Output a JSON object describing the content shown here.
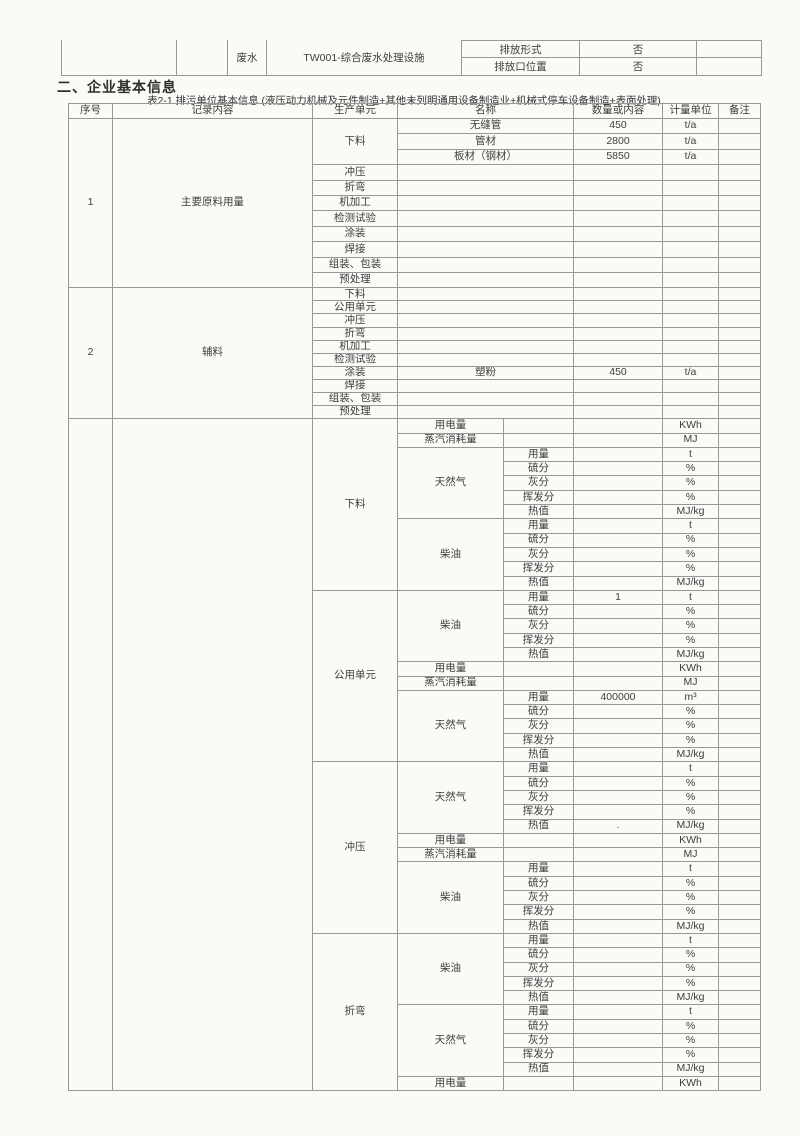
{
  "top_fragment": {
    "medium": "废水",
    "facility": "TW001-综合废水处理设施",
    "rows": [
      {
        "label": "排放形式",
        "value": "否"
      },
      {
        "label": "排放口位置",
        "value": "否"
      }
    ]
  },
  "section_heading": "二、企业基本信息",
  "table_caption": "表2-1 排污单位基本信息 (液压动力机械及元件制造+其他未列明通用设备制造业+机械式停车设备制造+表面处理)",
  "table": {
    "headers": [
      "序号",
      "记录内容",
      "生产单元",
      "名称",
      "数量或内容",
      "计量单位",
      "备注"
    ],
    "sections": [
      {
        "seq": "1",
        "content": "主要原料用量",
        "units": [
          {
            "unit": "下料",
            "items": [
              {
                "name": "无缝管",
                "qty": "450",
                "measure": "t/a"
              },
              {
                "name": "管材",
                "qty": "2800",
                "measure": "t/a"
              },
              {
                "name": "板材（钢材）",
                "qty": "5850",
                "measure": "t/a"
              }
            ]
          },
          {
            "unit": "冲压",
            "items": [
              {
                "name": "",
                "qty": "",
                "measure": ""
              }
            ]
          },
          {
            "unit": "折弯",
            "items": [
              {
                "name": "",
                "qty": "",
                "measure": ""
              }
            ]
          },
          {
            "unit": "机加工",
            "items": [
              {
                "name": "",
                "qty": "",
                "measure": ""
              }
            ]
          },
          {
            "unit": "检测试验",
            "items": [
              {
                "name": "",
                "qty": "",
                "measure": ""
              }
            ]
          },
          {
            "unit": "涂装",
            "items": [
              {
                "name": "",
                "qty": "",
                "measure": ""
              }
            ]
          },
          {
            "unit": "焊接",
            "items": [
              {
                "name": "",
                "qty": "",
                "measure": ""
              }
            ]
          },
          {
            "unit": "组装、包装",
            "items": [
              {
                "name": "",
                "qty": "",
                "measure": ""
              }
            ]
          },
          {
            "unit": "预处理",
            "items": [
              {
                "name": "",
                "qty": "",
                "measure": ""
              }
            ]
          }
        ]
      },
      {
        "seq": "2",
        "content": "辅料",
        "units": [
          {
            "unit": "下料",
            "items": [
              {
                "name": "",
                "qty": "",
                "measure": ""
              }
            ]
          },
          {
            "unit": "公用单元",
            "items": [
              {
                "name": "",
                "qty": "",
                "measure": ""
              }
            ]
          },
          {
            "unit": "冲压",
            "items": [
              {
                "name": "",
                "qty": "",
                "measure": ""
              }
            ]
          },
          {
            "unit": "折弯",
            "items": [
              {
                "name": "",
                "qty": "",
                "measure": ""
              }
            ]
          },
          {
            "unit": "机加工",
            "items": [
              {
                "name": "",
                "qty": "",
                "measure": ""
              }
            ]
          },
          {
            "unit": "检测试验",
            "items": [
              {
                "name": "",
                "qty": "",
                "measure": ""
              }
            ]
          },
          {
            "unit": "涂装",
            "items": [
              {
                "name": "塑粉",
                "qty": "450",
                "measure": "t/a"
              }
            ]
          },
          {
            "unit": "焊接",
            "items": [
              {
                "name": "",
                "qty": "",
                "measure": ""
              }
            ]
          },
          {
            "unit": "组装、包装",
            "items": [
              {
                "name": "",
                "qty": "",
                "measure": ""
              }
            ]
          },
          {
            "unit": "预处理",
            "items": [
              {
                "name": "",
                "qty": "",
                "measure": ""
              }
            ]
          }
        ]
      },
      {
        "seq": "",
        "content": "",
        "units": [
          {
            "unit": "下料",
            "blocks": [
              {
                "type": "single",
                "name": "用电量",
                "qty": "",
                "measure": "KWh"
              },
              {
                "type": "single",
                "name": "蒸汽消耗量",
                "qty": "",
                "measure": "MJ"
              },
              {
                "type": "group",
                "name": "天然气",
                "rows": [
                  [
                    "用量",
                    "",
                    "t"
                  ],
                  [
                    "硫分",
                    "",
                    "%"
                  ],
                  [
                    "灰分",
                    "",
                    "%"
                  ],
                  [
                    "挥发分",
                    "",
                    "%"
                  ],
                  [
                    "热值",
                    "",
                    "MJ/kg"
                  ]
                ]
              },
              {
                "type": "group",
                "name": "柴油",
                "rows": [
                  [
                    "用量",
                    "",
                    "t"
                  ],
                  [
                    "硫分",
                    "",
                    "%"
                  ],
                  [
                    "灰分",
                    "",
                    "%"
                  ],
                  [
                    "挥发分",
                    "",
                    "%"
                  ],
                  [
                    "热值",
                    "",
                    "MJ/kg"
                  ]
                ]
              }
            ]
          },
          {
            "unit": "公用单元",
            "blocks": [
              {
                "type": "group",
                "name": "柴油",
                "rows": [
                  [
                    "用量",
                    "1",
                    "t"
                  ],
                  [
                    "硫分",
                    "",
                    "%"
                  ],
                  [
                    "灰分",
                    "",
                    "%"
                  ],
                  [
                    "挥发分",
                    "",
                    "%"
                  ],
                  [
                    "热值",
                    "",
                    "MJ/kg"
                  ]
                ]
              },
              {
                "type": "single",
                "name": "用电量",
                "qty": "",
                "measure": "KWh"
              },
              {
                "type": "single",
                "name": "蒸汽消耗量",
                "qty": "",
                "measure": "MJ"
              },
              {
                "type": "group",
                "name": "天然气",
                "rows": [
                  [
                    "用量",
                    "400000",
                    "m³"
                  ],
                  [
                    "硫分",
                    "",
                    "%"
                  ],
                  [
                    "灰分",
                    "",
                    "%"
                  ],
                  [
                    "挥发分",
                    "",
                    "%"
                  ],
                  [
                    "热值",
                    "",
                    "MJ/kg"
                  ]
                ]
              }
            ]
          },
          {
            "unit": "冲压",
            "blocks": [
              {
                "type": "group",
                "name": "天然气",
                "rows": [
                  [
                    "用量",
                    "",
                    "t"
                  ],
                  [
                    "硫分",
                    "",
                    "%"
                  ],
                  [
                    "灰分",
                    "",
                    "%"
                  ],
                  [
                    "挥发分",
                    "",
                    "%"
                  ],
                  [
                    "热值",
                    ".",
                    "MJ/kg"
                  ]
                ]
              },
              {
                "type": "single",
                "name": "用电量",
                "qty": "",
                "measure": "KWh"
              },
              {
                "type": "single",
                "name": "蒸汽消耗量",
                "qty": "",
                "measure": "MJ"
              },
              {
                "type": "group",
                "name": "柴油",
                "rows": [
                  [
                    "用量",
                    "",
                    "t"
                  ],
                  [
                    "硫分",
                    "",
                    "%"
                  ],
                  [
                    "灰分",
                    "",
                    "%"
                  ],
                  [
                    "挥发分",
                    "",
                    "%"
                  ],
                  [
                    "热值",
                    "",
                    "MJ/kg"
                  ]
                ]
              }
            ]
          },
          {
            "unit": "折弯",
            "blocks": [
              {
                "type": "group",
                "name": "柴油",
                "rows": [
                  [
                    "用量",
                    "",
                    "t"
                  ],
                  [
                    "硫分",
                    "",
                    "%"
                  ],
                  [
                    "灰分",
                    "",
                    "%"
                  ],
                  [
                    "挥发分",
                    "",
                    "%"
                  ],
                  [
                    "热值",
                    "",
                    "MJ/kg"
                  ]
                ]
              },
              {
                "type": "group",
                "name": "天然气",
                "rows": [
                  [
                    "用量",
                    "",
                    "t"
                  ],
                  [
                    "硫分",
                    "",
                    "%"
                  ],
                  [
                    "灰分",
                    "",
                    "%"
                  ],
                  [
                    "挥发分",
                    "",
                    "%"
                  ],
                  [
                    "热值",
                    "",
                    "MJ/kg"
                  ]
                ]
              },
              {
                "type": "single",
                "name": "用电量",
                "qty": "",
                "measure": "KWh"
              }
            ]
          }
        ]
      }
    ]
  }
}
